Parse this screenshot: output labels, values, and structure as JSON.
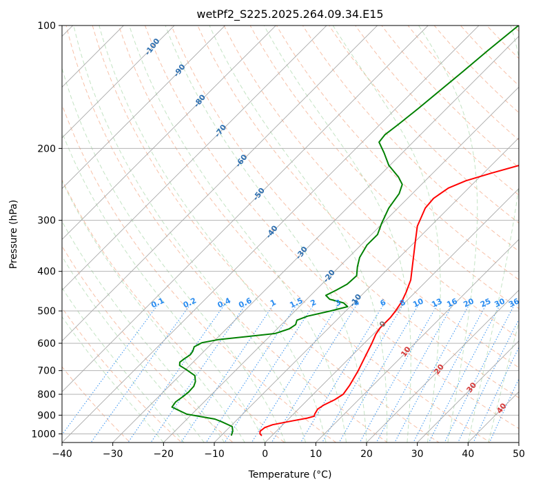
{
  "chart_data": {
    "type": "line",
    "title": "wetPf2_S225.2025.264.09.34.E15",
    "xlabel": "Temperature (°C)",
    "ylabel": "Pressure (hPa)",
    "xlim": [
      -40,
      50
    ],
    "ylim": [
      1050,
      100
    ],
    "y_scale": "log",
    "x_ticks": [
      -40,
      -30,
      -20,
      -10,
      0,
      10,
      20,
      30,
      40,
      50
    ],
    "y_ticks": [
      1000,
      900,
      800,
      700,
      600,
      500,
      400,
      300,
      200,
      100
    ],
    "grid": true,
    "series": [
      {
        "color": "#ff0000",
        "points": [
          [
            1010,
            -2.0
          ],
          [
            1000,
            -2.7
          ],
          [
            985,
            -3.2
          ],
          [
            965,
            -3.0
          ],
          [
            950,
            -2.0
          ],
          [
            930,
            1.0
          ],
          [
            915,
            3.5
          ],
          [
            905,
            4.5
          ],
          [
            895,
            4.2
          ],
          [
            870,
            3.8
          ],
          [
            850,
            4.2
          ],
          [
            825,
            5.3
          ],
          [
            800,
            5.9
          ],
          [
            760,
            5.4
          ],
          [
            700,
            4.2
          ],
          [
            650,
            2.9
          ],
          [
            600,
            1.5
          ],
          [
            570,
            0.5
          ],
          [
            550,
            0.1
          ],
          [
            520,
            0.1
          ],
          [
            500,
            -0.2
          ],
          [
            475,
            -0.8
          ],
          [
            450,
            -1.8
          ],
          [
            420,
            -3.3
          ],
          [
            400,
            -4.8
          ],
          [
            370,
            -7.2
          ],
          [
            340,
            -9.8
          ],
          [
            310,
            -12.6
          ],
          [
            280,
            -14.6
          ],
          [
            265,
            -14.9
          ],
          [
            250,
            -14.0
          ],
          [
            240,
            -12.0
          ],
          [
            230,
            -8.5
          ],
          [
            220,
            -4.5
          ],
          [
            210,
            -1.0
          ],
          [
            200,
            2.0
          ],
          [
            185,
            5.5
          ],
          [
            170,
            9.0
          ],
          [
            155,
            12.8
          ],
          [
            140,
            16.8
          ],
          [
            130,
            19.8
          ],
          [
            120,
            23.2
          ],
          [
            110,
            26.8
          ],
          [
            100,
            30.0
          ]
        ]
      },
      {
        "color": "#008000",
        "points": [
          [
            1010,
            -8.0
          ],
          [
            985,
            -8.6
          ],
          [
            960,
            -9.6
          ],
          [
            935,
            -12.5
          ],
          [
            920,
            -14.5
          ],
          [
            895,
            -21.0
          ],
          [
            860,
            -25.3
          ],
          [
            835,
            -25.6
          ],
          [
            810,
            -25.2
          ],
          [
            790,
            -25.0
          ],
          [
            765,
            -25.1
          ],
          [
            745,
            -25.7
          ],
          [
            720,
            -27.0
          ],
          [
            695,
            -30.0
          ],
          [
            680,
            -32.0
          ],
          [
            668,
            -32.6
          ],
          [
            655,
            -32.4
          ],
          [
            640,
            -32.0
          ],
          [
            628,
            -32.2
          ],
          [
            612,
            -32.8
          ],
          [
            598,
            -32.1
          ],
          [
            588,
            -29.5
          ],
          [
            578,
            -24.5
          ],
          [
            568,
            -19.5
          ],
          [
            553,
            -17.6
          ],
          [
            540,
            -17.2
          ],
          [
            527,
            -17.8
          ],
          [
            515,
            -16.5
          ],
          [
            500,
            -13.0
          ],
          [
            488,
            -10.5
          ],
          [
            478,
            -12.0
          ],
          [
            468,
            -15.5
          ],
          [
            458,
            -17.0
          ],
          [
            445,
            -16.0
          ],
          [
            430,
            -15.0
          ],
          [
            410,
            -14.8
          ],
          [
            390,
            -16.4
          ],
          [
            370,
            -17.8
          ],
          [
            345,
            -18.8
          ],
          [
            325,
            -18.8
          ],
          [
            305,
            -20.2
          ],
          [
            280,
            -21.8
          ],
          [
            258,
            -22.6
          ],
          [
            245,
            -23.8
          ],
          [
            235,
            -26.0
          ],
          [
            220,
            -30.2
          ],
          [
            205,
            -33.6
          ],
          [
            193,
            -36.7
          ],
          [
            185,
            -37.0
          ],
          [
            175,
            -36.4
          ],
          [
            160,
            -35.6
          ],
          [
            145,
            -34.9
          ],
          [
            130,
            -34.1
          ],
          [
            115,
            -33.3
          ],
          [
            100,
            -32.2
          ]
        ]
      }
    ],
    "mixing_ratio_labels": [
      "0.1",
      "0.2",
      "0.4",
      "0.6",
      "1",
      "1.5",
      "2",
      "3",
      "4",
      "6",
      "8",
      "10",
      "13",
      "16",
      "20",
      "25",
      "30",
      "36"
    ],
    "dry_adiabat_labels": [
      "-100",
      "-90",
      "-80",
      "-70",
      "-60",
      "-50",
      "-40",
      "-30",
      "-20",
      "-10"
    ],
    "moist_adiabat_labels": [
      "0",
      "10",
      "20",
      "30",
      "40"
    ]
  }
}
